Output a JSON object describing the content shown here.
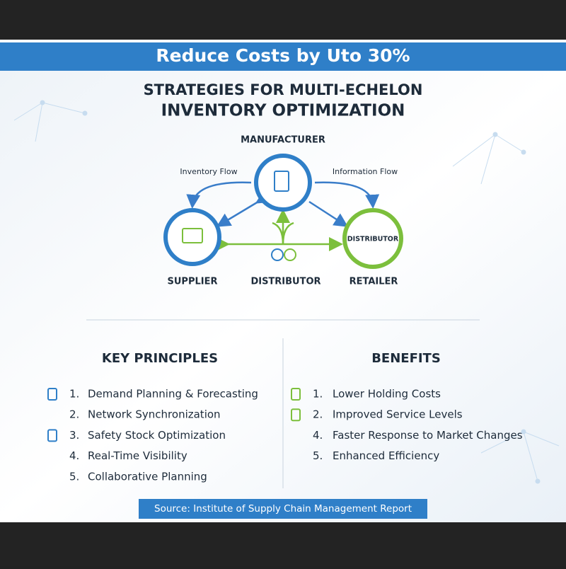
{
  "banner": "Reduce Costs by Uto 30%",
  "title": [
    "STRATEGIES FOR MULTI-ECHELON",
    "INVENTORY OPTIMIZATION"
  ],
  "diagram": {
    "nodes": {
      "manufacturer": "MANUFACTURER",
      "supplier": "SUPPLIER",
      "distributor": "DISTRIBUTOR",
      "retailer": "RETAILER",
      "retailer_circle": "DISTRIBUTOR"
    },
    "edges": {
      "left": "Inventory Flow",
      "right": "Information Flow"
    }
  },
  "principles": {
    "heading": "KEY PRINCIPLES",
    "items": [
      {
        "number": "1.",
        "text": "Demand Planning & Forecasting"
      },
      {
        "number": "2.",
        "text": "Network Synchronization"
      },
      {
        "number": "3.",
        "text": "Safety Stock Optimization"
      },
      {
        "number": "4.",
        "text": "Real-Time Visibility"
      },
      {
        "number": "5.",
        "text": "Collaborative Planning"
      }
    ]
  },
  "benefits": {
    "heading": "BENEFITS",
    "items": [
      {
        "number": "1.",
        "text": "Lower Holding Costs"
      },
      {
        "number": "2.",
        "text": "Improved Service Levels"
      },
      {
        "number": "4.",
        "text": "Faster Response to Market Changes"
      },
      {
        "number": "5.",
        "text": "Enhanced Efficiency"
      }
    ]
  },
  "source": "Source: Institute of Supply Chain Management Report"
}
